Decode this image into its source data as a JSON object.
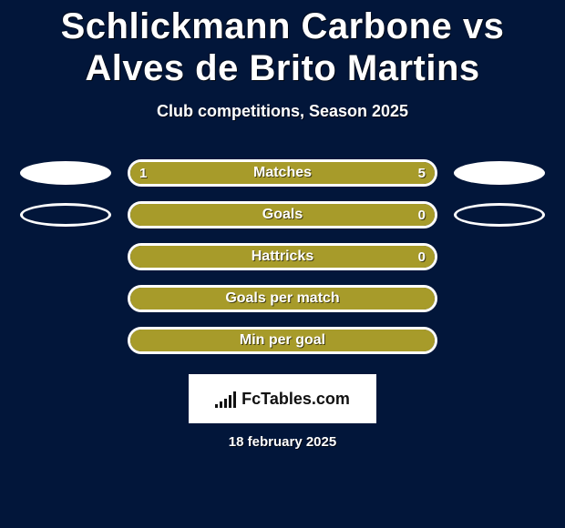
{
  "colors": {
    "background": "#02163a",
    "bar_fill": "#a79b2a",
    "bar_border": "#ffffff",
    "ellipse_fill": "#ffffff",
    "text": "#ffffff",
    "logo_bg": "#ffffff",
    "logo_text": "#111111"
  },
  "title": "Schlickmann Carbone vs Alves de Brito Martins",
  "subtitle": "Club competitions, Season 2025",
  "rows": [
    {
      "label": "Matches",
      "left_value": "1",
      "right_value": "5",
      "left_fill_pct": 16.7,
      "right_fill_pct": 83.3,
      "left_ellipse": "fill",
      "right_ellipse": "fill"
    },
    {
      "label": "Goals",
      "left_value": "",
      "right_value": "0",
      "left_fill_pct": 0,
      "right_fill_pct": 100,
      "left_ellipse": "outline",
      "right_ellipse": "outline"
    },
    {
      "label": "Hattricks",
      "left_value": "",
      "right_value": "0",
      "left_fill_pct": 0,
      "right_fill_pct": 100,
      "left_ellipse": "none",
      "right_ellipse": "none"
    },
    {
      "label": "Goals per match",
      "left_value": "",
      "right_value": "",
      "left_fill_pct": 0,
      "right_fill_pct": 100,
      "left_ellipse": "none",
      "right_ellipse": "none"
    },
    {
      "label": "Min per goal",
      "left_value": "",
      "right_value": "",
      "left_fill_pct": 0,
      "right_fill_pct": 100,
      "left_ellipse": "none",
      "right_ellipse": "none"
    }
  ],
  "logo": {
    "text_prefix": "Fc",
    "text_main": "Tables",
    "text_suffix": ".com",
    "bar_heights": [
      4,
      7,
      10,
      14,
      18
    ]
  },
  "date": "18 february 2025"
}
